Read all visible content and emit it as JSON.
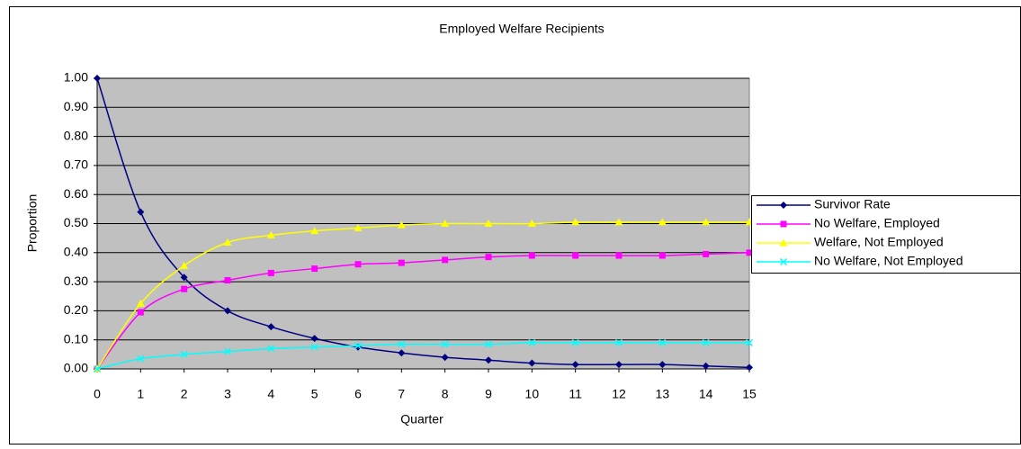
{
  "chart_data": {
    "type": "line",
    "title": "Employed Welfare Recipients",
    "x_label": "Quarter",
    "y_label": "Proportion",
    "x": [
      0,
      1,
      2,
      3,
      4,
      5,
      6,
      7,
      8,
      9,
      10,
      11,
      12,
      13,
      14,
      15
    ],
    "xlim": [
      0,
      15
    ],
    "xticks": [
      0,
      1,
      2,
      3,
      4,
      5,
      6,
      7,
      8,
      9,
      10,
      11,
      12,
      13,
      14,
      15
    ],
    "ylim": [
      0,
      1
    ],
    "yticks": [
      {
        "value": 0,
        "label": "0.00"
      },
      {
        "value": 0.1,
        "label": "0.10"
      },
      {
        "value": 0.2,
        "label": "0.20"
      },
      {
        "value": 0.3,
        "label": "0.30"
      },
      {
        "value": 0.4,
        "label": "0.40"
      },
      {
        "value": 0.5,
        "label": "0.50"
      },
      {
        "value": 0.6,
        "label": "0.60"
      },
      {
        "value": 0.7,
        "label": "0.70"
      },
      {
        "value": 0.8,
        "label": "0.80"
      },
      {
        "value": 0.9,
        "label": "0.90"
      },
      {
        "value": 1,
        "label": "1.00"
      }
    ],
    "grid": true,
    "legend": "right",
    "background": "#c0c0c0",
    "series": [
      {
        "name": "Survivor Rate",
        "color": "#000080",
        "marker": "diamond",
        "values": [
          1.0,
          0.54,
          0.315,
          0.2,
          0.145,
          0.105,
          0.075,
          0.055,
          0.04,
          0.03,
          0.02,
          0.015,
          0.015,
          0.015,
          0.01,
          0.005
        ]
      },
      {
        "name": "No Welfare, Employed",
        "color": "#ff00ff",
        "marker": "square",
        "values": [
          0,
          0.195,
          0.275,
          0.305,
          0.33,
          0.345,
          0.36,
          0.365,
          0.375,
          0.385,
          0.39,
          0.39,
          0.39,
          0.39,
          0.395,
          0.4
        ]
      },
      {
        "name": "Welfare, Not Employed",
        "color": "#ffff00",
        "marker": "triangle",
        "values": [
          0,
          0.225,
          0.355,
          0.435,
          0.46,
          0.475,
          0.485,
          0.495,
          0.5,
          0.5,
          0.5,
          0.505,
          0.505,
          0.505,
          0.505,
          0.505
        ]
      },
      {
        "name": "No Welfare, Not Employed",
        "color": "#00ffff",
        "marker": "x",
        "values": [
          0,
          0.035,
          0.05,
          0.06,
          0.07,
          0.075,
          0.08,
          0.085,
          0.085,
          0.085,
          0.09,
          0.09,
          0.09,
          0.09,
          0.09,
          0.09
        ]
      }
    ]
  }
}
